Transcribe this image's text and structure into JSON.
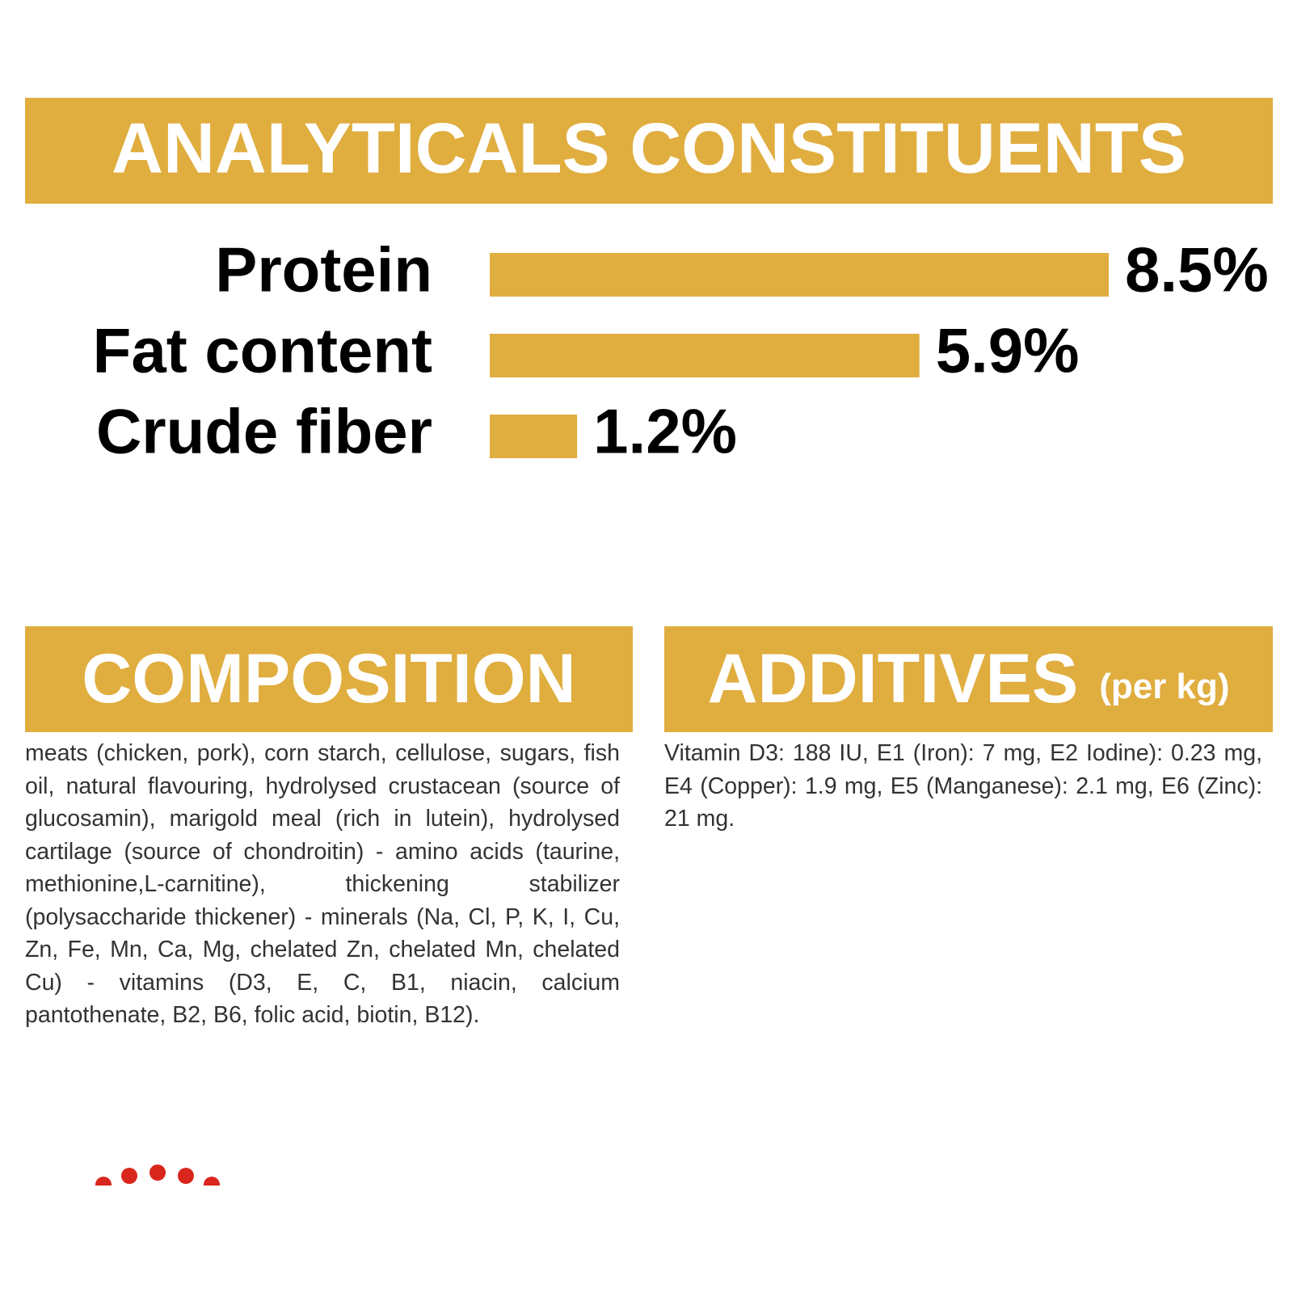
{
  "chart_data": {
    "type": "bar",
    "orientation": "horizontal",
    "title": "ANALYTICALS CONSTITUENTS",
    "categories": [
      "Protein",
      "Fat content",
      "Crude fiber"
    ],
    "values": [
      8.5,
      5.9,
      1.2
    ],
    "value_labels": [
      "8.5%",
      "5.9%",
      "1.2%"
    ],
    "color": "#e0ad3f"
  },
  "composition": {
    "title": "COMPOSITION",
    "text": "meats (chicken, pork), corn starch, cellulose, sugars, fish oil, natural flavouring, hydrolysed crustacean (source of glucosamin), marigold meal (rich in lutein), hydrolysed cartilage (source of chondroitin) - amino acids (taurine, methionine,L-carnitine), thickening stabilizer (polysaccharide thickener) - minerals (Na, Cl, P, K, I, Cu, Zn, Fe, Mn, Ca, Mg, chelated Zn, chelated Mn, chelated Cu) - vitamins (D3, E, C, B1, niacin, calcium pantothenate, B2, B6, folic acid, biotin, B12)."
  },
  "additives": {
    "title": "ADDITIVES",
    "unit": "(per kg)",
    "text": "Vitamin D3: 188 IU, E1 (Iron): 7 mg, E2 Iodine): 0.23 mg, E4 (Copper): 1.9 mg, E5 (Manganese): 2.1 mg, E6 (Zinc): 21 mg."
  }
}
